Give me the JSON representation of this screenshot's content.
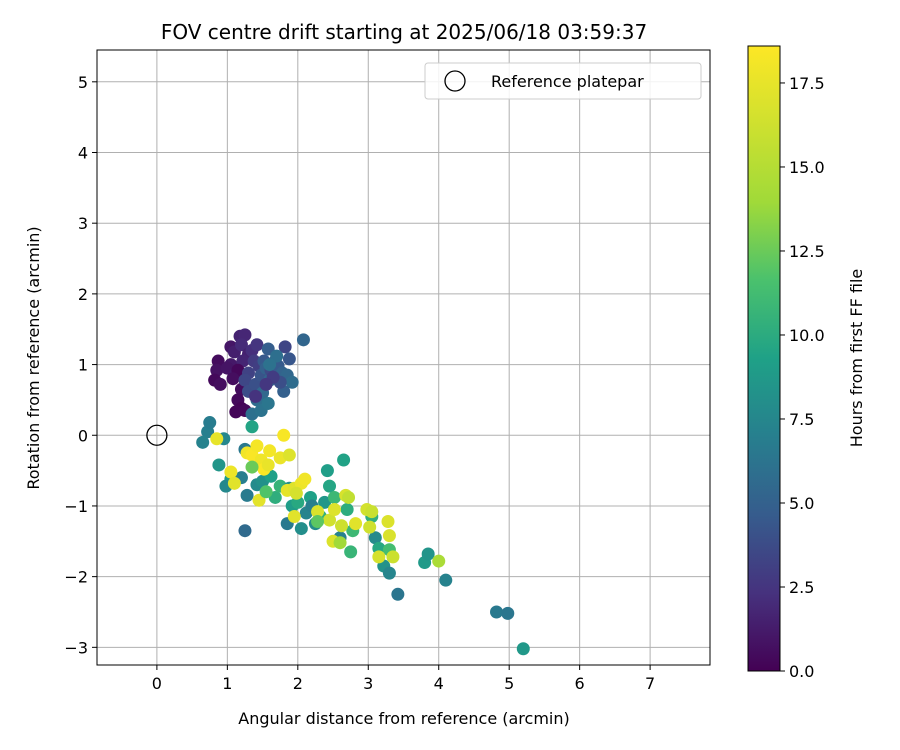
{
  "chart_data": {
    "type": "scatter",
    "title": "FOV centre drift starting at 2025/06/18 03:59:37",
    "xlabel": "Angular distance from reference (arcmin)",
    "ylabel": "Rotation from reference (arcmin)",
    "xlim": [
      -0.85,
      7.85
    ],
    "ylim": [
      -3.25,
      5.45
    ],
    "x_ticks": [
      0,
      1,
      2,
      3,
      4,
      5,
      6,
      7
    ],
    "y_ticks": [
      -3,
      -2,
      -1,
      0,
      1,
      2,
      3,
      4,
      5
    ],
    "grid": true,
    "legend": {
      "placement": "top-right",
      "entries": [
        "Reference platepar"
      ]
    },
    "reference_point": {
      "label": "Reference platepar",
      "x": 0,
      "y": 0
    },
    "colorbar": {
      "label": "Hours from first FF file",
      "colormap": "viridis",
      "range": [
        0,
        18.6
      ],
      "ticks": [
        0.0,
        2.5,
        5.0,
        7.5,
        10.0,
        12.5,
        15.0,
        17.5
      ],
      "tick_labels": [
        "0.0",
        "2.5",
        "5.0",
        "7.5",
        "10.0",
        "12.5",
        "15.0",
        "17.5"
      ]
    },
    "points": [
      [
        0.87,
        1.05,
        0.5
      ],
      [
        0.85,
        0.92,
        0.8
      ],
      [
        0.82,
        0.78,
        0.4
      ],
      [
        0.9,
        0.72,
        0.6
      ],
      [
        1.05,
        1.25,
        1.0
      ],
      [
        1.1,
        1.18,
        1.4
      ],
      [
        1.05,
        1.0,
        1.1
      ],
      [
        1.0,
        0.95,
        0.9
      ],
      [
        1.12,
        0.88,
        1.2
      ],
      [
        1.18,
        1.4,
        1.6
      ],
      [
        1.25,
        1.42,
        1.8
      ],
      [
        1.2,
        1.28,
        2.0
      ],
      [
        1.3,
        1.15,
        1.5
      ],
      [
        1.22,
        1.05,
        1.7
      ],
      [
        1.15,
        0.92,
        0.3
      ],
      [
        1.08,
        0.8,
        0.6
      ],
      [
        1.2,
        0.65,
        0.5
      ],
      [
        1.15,
        0.5,
        0.4
      ],
      [
        1.2,
        0.38,
        0.1
      ],
      [
        1.12,
        0.33,
        0.2
      ],
      [
        1.25,
        0.35,
        0.3
      ],
      [
        1.35,
        1.2,
        2.2
      ],
      [
        1.42,
        1.28,
        2.5
      ],
      [
        1.38,
        1.05,
        2.8
      ],
      [
        1.45,
        0.98,
        3.0
      ],
      [
        1.3,
        0.88,
        3.2
      ],
      [
        1.25,
        0.78,
        3.5
      ],
      [
        1.3,
        0.62,
        3.8
      ],
      [
        1.4,
        0.72,
        4.0
      ],
      [
        1.48,
        0.85,
        4.2
      ],
      [
        1.52,
        1.05,
        4.5
      ],
      [
        1.58,
        1.22,
        4.8
      ],
      [
        1.55,
        0.95,
        5.0
      ],
      [
        1.6,
        0.78,
        5.2
      ],
      [
        1.5,
        0.6,
        5.5
      ],
      [
        1.42,
        0.5,
        5.8
      ],
      [
        1.35,
        0.3,
        6.0
      ],
      [
        1.48,
        0.35,
        6.2
      ],
      [
        1.58,
        0.45,
        6.4
      ],
      [
        1.62,
        0.92,
        3.6
      ],
      [
        1.68,
        1.05,
        4.1
      ],
      [
        1.72,
        0.98,
        4.6
      ],
      [
        1.78,
        0.88,
        5.1
      ],
      [
        1.82,
        1.25,
        3.4
      ],
      [
        1.88,
        1.08,
        4.3
      ],
      [
        1.85,
        0.85,
        5.4
      ],
      [
        1.92,
        0.75,
        5.7
      ],
      [
        1.8,
        0.62,
        4.9
      ],
      [
        1.75,
        0.75,
        3.9
      ],
      [
        1.65,
        0.82,
        2.9
      ],
      [
        1.55,
        0.72,
        2.6
      ],
      [
        1.4,
        0.55,
        2.4
      ],
      [
        2.08,
        1.35,
        5.3
      ],
      [
        1.7,
        1.12,
        5.9
      ],
      [
        1.6,
        1.0,
        6.1
      ],
      [
        0.72,
        0.05,
        7.0
      ],
      [
        0.75,
        0.18,
        6.8
      ],
      [
        0.65,
        -0.1,
        7.2
      ],
      [
        0.95,
        -0.05,
        7.5
      ],
      [
        0.88,
        -0.42,
        8.5
      ],
      [
        1.05,
        -0.62,
        8.9
      ],
      [
        0.98,
        -0.72,
        7.6
      ],
      [
        1.2,
        -0.6,
        6.9
      ],
      [
        1.25,
        -0.2,
        6.5
      ],
      [
        1.35,
        0.12,
        9.5
      ],
      [
        1.28,
        -0.85,
        6.7
      ],
      [
        1.42,
        -0.7,
        7.8
      ],
      [
        1.5,
        -0.65,
        8.2
      ],
      [
        1.62,
        -0.58,
        9.2
      ],
      [
        1.68,
        -0.88,
        10.2
      ],
      [
        1.75,
        -0.72,
        10.6
      ],
      [
        1.85,
        -1.25,
        6.6
      ],
      [
        1.92,
        -1.0,
        9.0
      ],
      [
        2.0,
        -0.95,
        9.8
      ],
      [
        2.05,
        -1.32,
        8.0
      ],
      [
        2.12,
        -1.1,
        7.3
      ],
      [
        2.18,
        -0.88,
        9.3
      ],
      [
        2.25,
        -1.25,
        7.9
      ],
      [
        2.32,
        -1.15,
        10.4
      ],
      [
        2.38,
        -0.95,
        8.6
      ],
      [
        2.45,
        -0.72,
        9.6
      ],
      [
        2.42,
        -0.5,
        9.1
      ],
      [
        2.52,
        -0.88,
        10.9
      ],
      [
        2.6,
        -1.45,
        7.1
      ],
      [
        2.65,
        -0.35,
        9.4
      ],
      [
        2.7,
        -1.05,
        10.1
      ],
      [
        2.75,
        -1.65,
        10.7
      ],
      [
        2.78,
        -1.35,
        11.0
      ],
      [
        3.05,
        -1.15,
        10.3
      ],
      [
        3.1,
        -1.45,
        7.7
      ],
      [
        3.15,
        -1.6,
        9.7
      ],
      [
        3.22,
        -1.85,
        8.3
      ],
      [
        3.3,
        -1.95,
        7.4
      ],
      [
        3.3,
        -1.62,
        11.3
      ],
      [
        3.42,
        -2.25,
        6.3
      ],
      [
        3.8,
        -1.8,
        8.8
      ],
      [
        3.85,
        -1.68,
        8.4
      ],
      [
        4.1,
        -2.05,
        7.2
      ],
      [
        4.82,
        -2.5,
        6.6
      ],
      [
        4.98,
        -2.52,
        6.4
      ],
      [
        5.2,
        -3.02,
        8.7
      ],
      [
        1.25,
        -1.35,
        5.6
      ],
      [
        1.88,
        -0.75,
        8.1
      ],
      [
        2.2,
        -1.0,
        7.0
      ],
      [
        0.85,
        -0.05,
        17.5
      ],
      [
        1.05,
        -0.52,
        17.8
      ],
      [
        1.1,
        -0.68,
        17.2
      ],
      [
        1.28,
        -0.25,
        18.0
      ],
      [
        1.35,
        -0.28,
        18.4
      ],
      [
        1.42,
        -0.15,
        18.2
      ],
      [
        1.48,
        -0.35,
        17.9
      ],
      [
        1.52,
        -0.48,
        18.5
      ],
      [
        1.58,
        -0.42,
        17.6
      ],
      [
        1.45,
        -0.92,
        17.3
      ],
      [
        1.6,
        -0.22,
        18.1
      ],
      [
        1.75,
        -0.32,
        17.7
      ],
      [
        1.8,
        0.0,
        18.3
      ],
      [
        1.85,
        -0.78,
        17.4
      ],
      [
        1.88,
        -0.28,
        17.0
      ],
      [
        1.95,
        -0.75,
        17.1
      ],
      [
        2.05,
        -0.68,
        17.8
      ],
      [
        2.1,
        -0.62,
        18.0
      ],
      [
        1.98,
        -0.82,
        16.6
      ],
      [
        1.95,
        -1.15,
        17.2
      ],
      [
        2.28,
        -1.08,
        16.8
      ],
      [
        2.45,
        -1.2,
        16.4
      ],
      [
        2.52,
        -1.05,
        17.0
      ],
      [
        2.5,
        -1.5,
        16.9
      ],
      [
        2.62,
        -1.28,
        16.2
      ],
      [
        2.68,
        -0.85,
        16.7
      ],
      [
        2.72,
        -0.88,
        15.6
      ],
      [
        2.82,
        -1.25,
        17.2
      ],
      [
        2.98,
        -1.05,
        16.5
      ],
      [
        3.05,
        -1.08,
        16.0
      ],
      [
        3.02,
        -1.3,
        16.3
      ],
      [
        3.15,
        -1.72,
        16.6
      ],
      [
        3.28,
        -1.22,
        16.9
      ],
      [
        3.3,
        -1.42,
        16.8
      ],
      [
        3.35,
        -1.72,
        16.1
      ],
      [
        4.0,
        -1.78,
        14.5
      ],
      [
        2.6,
        -1.52,
        14.0
      ],
      [
        1.35,
        -0.45,
        12.5
      ],
      [
        1.55,
        -0.8,
        11.8
      ],
      [
        2.28,
        -1.22,
        12.1
      ]
    ]
  }
}
